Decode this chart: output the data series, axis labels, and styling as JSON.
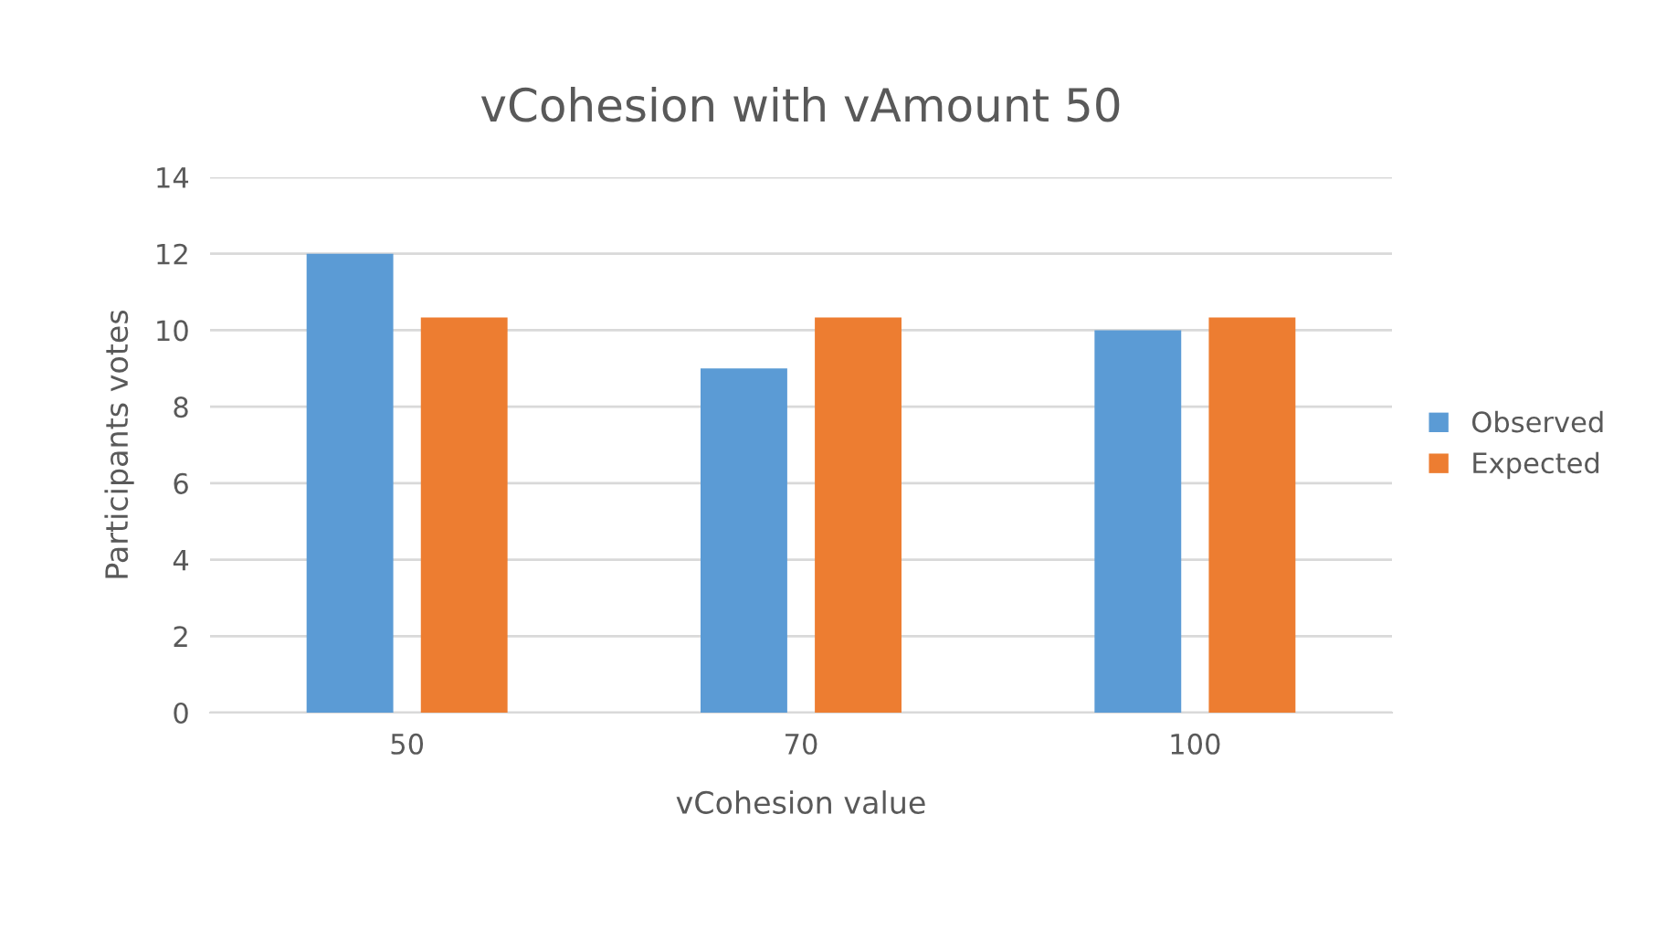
{
  "chart_data": {
    "type": "bar",
    "title": "vCohesion with vAmount 50",
    "xlabel": "vCohesion value",
    "ylabel": "Participants votes",
    "categories": [
      "50",
      "70",
      "100"
    ],
    "series": [
      {
        "name": "Observed",
        "color": "#5b9bd5",
        "values": [
          12,
          9,
          10
        ]
      },
      {
        "name": "Expected",
        "color": "#ed7d31",
        "values": [
          10.33,
          10.33,
          10.33
        ]
      }
    ],
    "ylim": [
      0,
      14
    ],
    "yticks": [
      0,
      2,
      4,
      6,
      8,
      10,
      12,
      14
    ],
    "grid": "y",
    "legend": "right"
  }
}
